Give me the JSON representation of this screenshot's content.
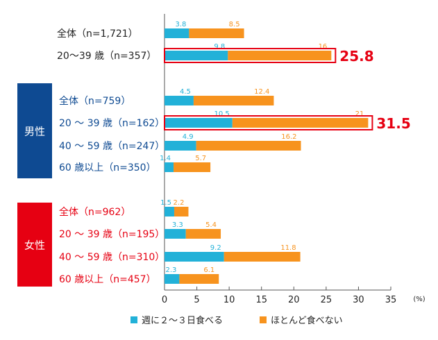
{
  "chart_data": {
    "type": "bar",
    "orientation": "horizontal",
    "stacked": true,
    "xlim": [
      0,
      35
    ],
    "xticks": [
      0,
      5,
      10,
      15,
      20,
      25,
      30,
      35
    ],
    "xunit": "(%)",
    "grid": false,
    "legend_position": "bottom",
    "colors": {
      "s0": "#22b1d8",
      "s1": "#f7931e",
      "male": "#0e4a92",
      "female": "#e60012",
      "highlight": "#e60012"
    },
    "groups": [
      {
        "label": "",
        "rows": [
          0,
          1
        ]
      },
      {
        "label": "男性",
        "rows": [
          2,
          3,
          4,
          5
        ]
      },
      {
        "label": "女性",
        "rows": [
          6,
          7,
          8,
          9
        ]
      }
    ],
    "categories": [
      "全体（n=1,721）",
      "20〜39 歳（n=357）",
      "全体（n=759）",
      "20 〜 39 歳（n=162）",
      "40 〜 59 歳（n=247）",
      "60 歳以上（n=350）",
      "全体（n=962）",
      "20 〜 39 歳（n=195）",
      "40 〜 59 歳（n=310）",
      "60 歳以上（n=457）"
    ],
    "category_groups": [
      0,
      0,
      1,
      1,
      1,
      1,
      2,
      2,
      2,
      2
    ],
    "series": [
      {
        "name": "週に２〜３日食べる",
        "values": [
          3.8,
          9.8,
          4.5,
          10.5,
          4.9,
          1.4,
          1.5,
          3.3,
          9.2,
          2.3
        ]
      },
      {
        "name": "ほとんど食べない",
        "values": [
          8.5,
          16,
          12.4,
          21,
          16.2,
          5.7,
          2.2,
          5.4,
          11.8,
          6.1
        ]
      }
    ],
    "highlights": [
      {
        "row": 1,
        "total": "25.8"
      },
      {
        "row": 3,
        "total": "31.5"
      }
    ]
  }
}
